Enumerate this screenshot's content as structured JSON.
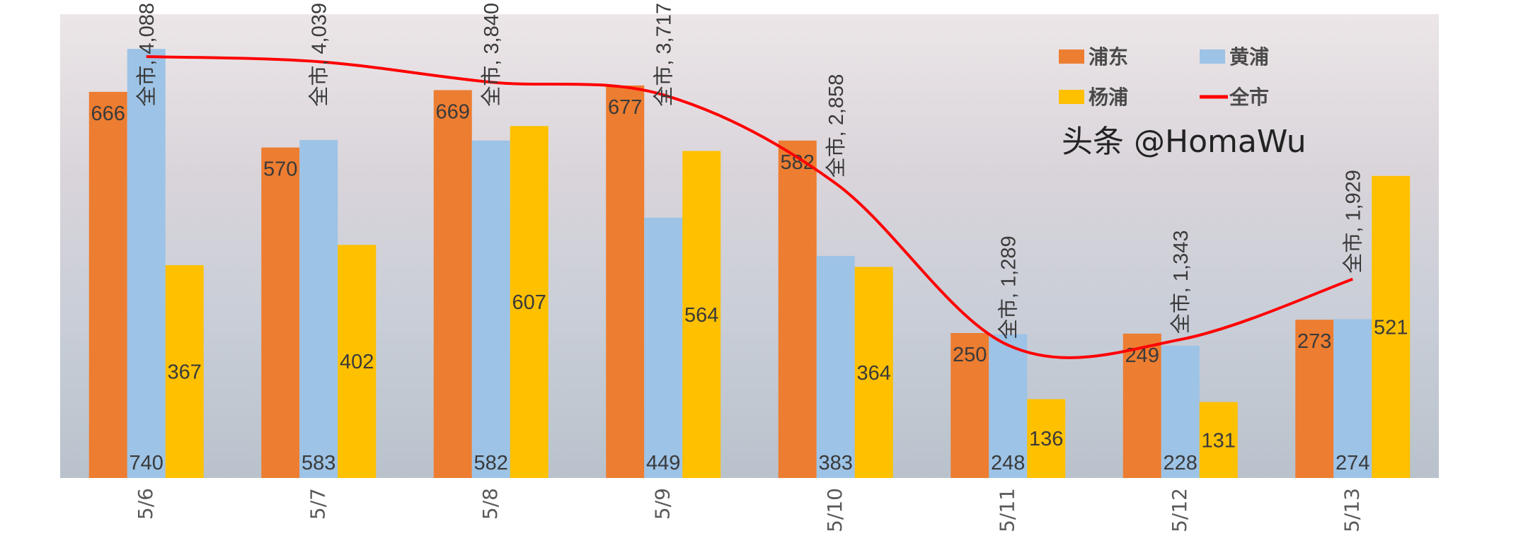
{
  "chart_data": {
    "type": "bar",
    "title": "",
    "xlabel": "",
    "ylabel": "",
    "categories": [
      "5/6",
      "5/7",
      "5/8",
      "5/9",
      "5/10",
      "5/11",
      "5/12",
      "5/13"
    ],
    "ylim": [
      0,
      800
    ],
    "y2lim": [
      0,
      4500
    ],
    "grid": false,
    "legend_placement": "top-right",
    "series": [
      {
        "name": "浦东",
        "type": "bar",
        "color": "#ED7D31",
        "values": [
          666,
          570,
          669,
          677,
          582,
          250,
          249,
          273
        ]
      },
      {
        "name": "黄浦",
        "type": "bar",
        "color": "#9DC3E6",
        "values": [
          740,
          583,
          582,
          449,
          383,
          248,
          228,
          274
        ]
      },
      {
        "name": "杨浦",
        "type": "bar",
        "color": "#FFC000",
        "values": [
          367,
          402,
          607,
          564,
          364,
          136,
          131,
          521
        ]
      },
      {
        "name": "全市",
        "type": "line",
        "axis": "secondary",
        "smooth": true,
        "color": "#FF0000",
        "values": [
          4088,
          4039,
          3840,
          3717,
          2858,
          1289,
          1343,
          1929
        ],
        "labels": [
          "全市, 4,088",
          "全市, 4,039",
          "全市, 3,840",
          "全市, 3,717",
          "全市, 2,858",
          "全市, 1,289",
          "全市, 1,343",
          "全市, 1,929"
        ]
      }
    ],
    "background": "city night photo"
  },
  "watermark": "头条 @HomaWu"
}
